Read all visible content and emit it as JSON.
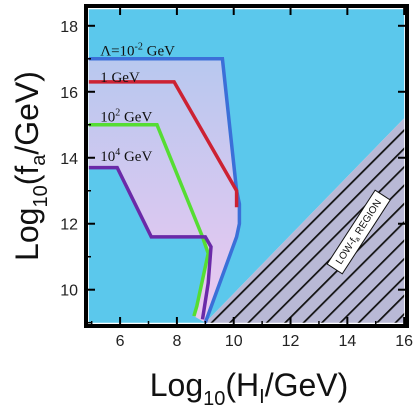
{
  "chart_data": {
    "type": "area",
    "xlabel_main": "Log",
    "xlabel_sub": "10",
    "xlabel_rest_open": "(H",
    "xlabel_rest_sub": "I",
    "xlabel_rest_close": "/GeV)",
    "ylabel_main": "Log",
    "ylabel_sub": "10",
    "ylabel_rest_open": "(f",
    "ylabel_rest_sub": "a",
    "ylabel_rest_close": "/GeV)",
    "xlim": [
      4.8,
      16.1
    ],
    "ylim": [
      8.9,
      18.6
    ],
    "xticks": [
      6,
      8,
      10,
      12,
      14,
      16
    ],
    "yticks": [
      10,
      12,
      14,
      16,
      18
    ],
    "colors": {
      "allowed_fill": "#5bc8ec",
      "hatch_fill": "#b9b9d6",
      "curve_blue": "#3b6fd8",
      "curve_red": "#cc2233",
      "curve_green": "#55dd33",
      "curve_purple": "#6a2aa8",
      "inner_fill_top": "#b8c8ef",
      "inner_fill_bottom": "#e6c6ee"
    },
    "allowed_region": [
      [
        4.9,
        18.5
      ],
      [
        16.0,
        18.5
      ],
      [
        16.0,
        15.2
      ],
      [
        9.0,
        9.0
      ],
      [
        4.9,
        9.0
      ]
    ],
    "low_fa_region": [
      [
        9.0,
        9.0
      ],
      [
        16.0,
        9.0
      ],
      [
        16.0,
        15.2
      ]
    ],
    "series": [
      {
        "label_main": "Λ=10",
        "label_sup": "-2",
        "label_unit": " GeV",
        "label_pos": [
          5.3,
          17.1
        ],
        "color_key": "curve_blue",
        "x": [
          4.9,
          9.6,
          10.1,
          10.2,
          10.2,
          10.1,
          9.0
        ],
        "y": [
          17.0,
          17.0,
          13.0,
          12.6,
          12.0,
          11.6,
          9.0
        ]
      },
      {
        "label_main": "1 GeV",
        "label_sup": "",
        "label_unit": "",
        "label_pos": [
          5.3,
          16.3
        ],
        "color_key": "curve_red",
        "x": [
          4.9,
          7.9,
          10.1,
          10.1
        ],
        "y": [
          16.3,
          16.3,
          13.0,
          12.5
        ]
      },
      {
        "label_main": "10",
        "label_sup": "2",
        "label_unit": " GeV",
        "label_pos": [
          5.3,
          15.1
        ],
        "color_key": "curve_green",
        "x": [
          4.9,
          7.3,
          8.9,
          9.1,
          8.7,
          8.6
        ],
        "y": [
          15.0,
          15.0,
          11.6,
          11.1,
          9.5,
          9.2
        ]
      },
      {
        "label_main": "10",
        "label_sup": "4",
        "label_unit": " GeV",
        "label_pos": [
          5.3,
          13.9
        ],
        "color_key": "curve_purple",
        "x": [
          4.9,
          5.9,
          7.1,
          9.0,
          9.2,
          9.1,
          8.9
        ],
        "y": [
          13.7,
          13.7,
          11.6,
          11.6,
          11.3,
          10.2,
          9.1
        ]
      }
    ],
    "inner_region": [
      [
        4.9,
        17.0
      ],
      [
        9.6,
        17.0
      ],
      [
        10.1,
        13.0
      ],
      [
        10.2,
        12.6
      ],
      [
        10.2,
        12.0
      ],
      [
        10.1,
        11.6
      ],
      [
        9.0,
        9.0
      ],
      [
        8.6,
        9.2
      ],
      [
        8.7,
        9.5
      ],
      [
        9.1,
        11.1
      ],
      [
        9.0,
        11.6
      ],
      [
        7.1,
        11.6
      ],
      [
        5.9,
        13.7
      ],
      [
        4.9,
        13.7
      ]
    ],
    "region_annotation": {
      "text_start": "LOW-f",
      "text_sub": "a",
      "text_end": " REGION",
      "anchor": [
        14.4,
        11.75
      ],
      "rotation": -57
    }
  }
}
